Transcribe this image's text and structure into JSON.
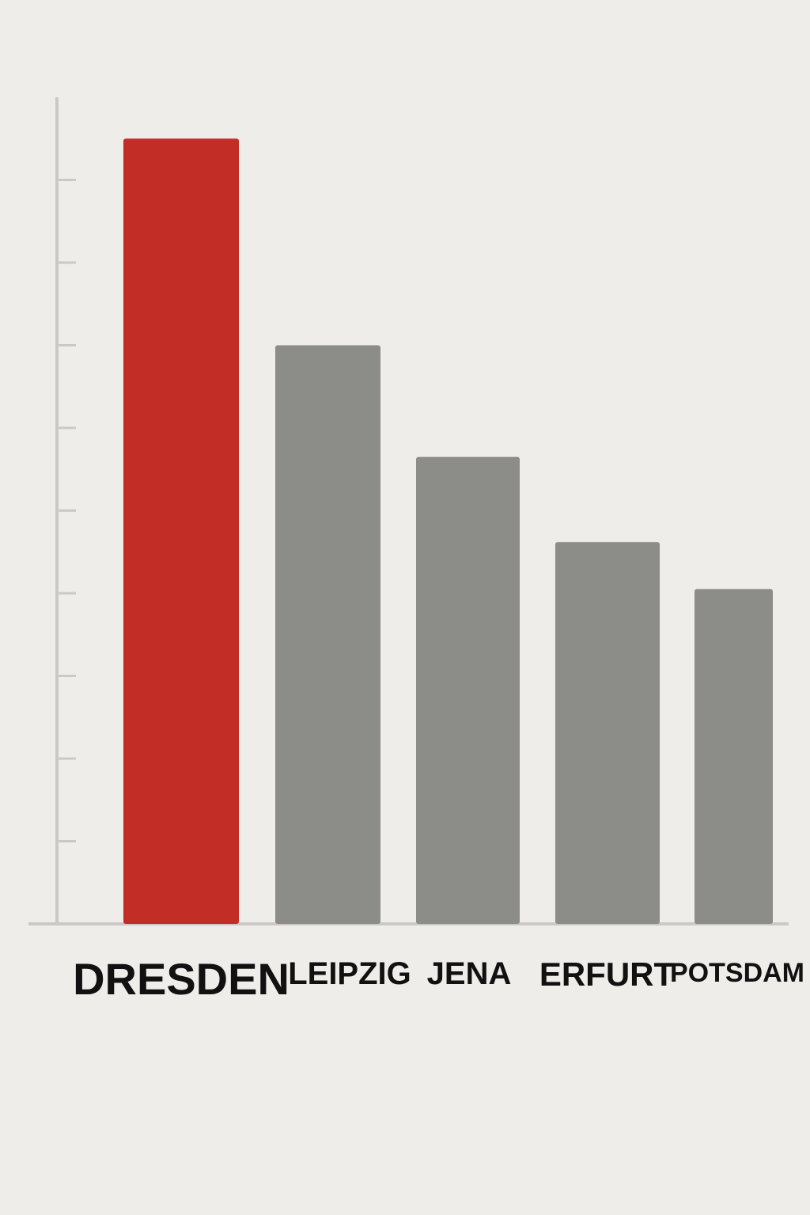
{
  "chart_data": {
    "type": "bar",
    "categories": [
      "DRESDEN",
      "LEIPZIG",
      "JENA",
      "ERFURT",
      "POTSDAM"
    ],
    "values": [
      9.5,
      7.0,
      5.65,
      4.62,
      4.05
    ],
    "title": "",
    "xlabel": "",
    "ylabel": "",
    "ylim": [
      0,
      10
    ],
    "y_tick_values": [
      1,
      2,
      3,
      4,
      5,
      6,
      7,
      8,
      9
    ],
    "y_tick_labels_visible": false,
    "grid": false,
    "legend": "none",
    "highlight_category": "DRESDEN",
    "colors": {
      "highlight": "#c22d26",
      "default": "#8c8c88",
      "axis": "#cbc8c5",
      "background": "#efedea",
      "label": "#111111"
    }
  }
}
